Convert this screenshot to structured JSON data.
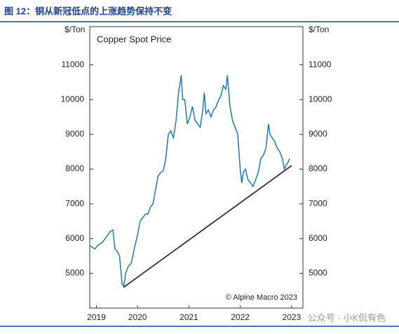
{
  "chart_data": {
    "type": "line",
    "title": "图 12：铜从新冠低点的上涨趋势保持不变",
    "subtitle": "Copper Spot Price",
    "y_label": "$/Ton",
    "y2_label": "$/Ton",
    "source": "© Alpine Macro 2023",
    "watermark": "公众号 · 小K侃有色",
    "xlim": [
      2019.57,
      2023.72
    ],
    "xticks": [
      {
        "value": 2019.7,
        "label": "2019"
      },
      {
        "value": 2020.5,
        "label": "2020"
      },
      {
        "value": 2021.5,
        "label": "2021"
      },
      {
        "value": 2022.5,
        "label": "2022"
      },
      {
        "value": 2023.5,
        "label": "2023"
      }
    ],
    "ylim": [
      4000,
      12100
    ],
    "yticks": [
      5000,
      6000,
      7000,
      8000,
      9000,
      10000,
      11000
    ],
    "series": [
      {
        "name": "Copper Spot Price",
        "color": "#1f77c0",
        "x": [
          2019.57,
          2019.62,
          2019.67,
          2019.72,
          2019.77,
          2019.82,
          2019.87,
          2019.92,
          2019.97,
          2020.02,
          2020.06,
          2020.1,
          2020.15,
          2020.2,
          2020.23,
          2020.27,
          2020.32,
          2020.38,
          2020.45,
          2020.5,
          2020.55,
          2020.6,
          2020.65,
          2020.7,
          2020.75,
          2020.8,
          2020.85,
          2020.9,
          2020.95,
          2021.0,
          2021.05,
          2021.1,
          2021.15,
          2021.2,
          2021.25,
          2021.3,
          2021.35,
          2021.38,
          2021.42,
          2021.47,
          2021.52,
          2021.57,
          2021.62,
          2021.67,
          2021.72,
          2021.77,
          2021.8,
          2021.83,
          2021.88,
          2021.93,
          2021.98,
          2022.03,
          2022.08,
          2022.12,
          2022.17,
          2022.22,
          2022.25,
          2022.3,
          2022.35,
          2022.4,
          2022.45,
          2022.5,
          2022.53,
          2022.56,
          2022.6,
          2022.65,
          2022.7,
          2022.75,
          2022.8,
          2022.85,
          2022.9,
          2022.95,
          2023.0,
          2023.05,
          2023.08,
          2023.12,
          2023.17,
          2023.22,
          2023.27,
          2023.32,
          2023.36,
          2023.39,
          2023.43,
          2023.46
        ],
        "values": [
          5800,
          5750,
          5700,
          5800,
          5850,
          5900,
          6000,
          6100,
          6200,
          6250,
          5700,
          5650,
          5500,
          4700,
          4620,
          5000,
          5200,
          5300,
          5800,
          6100,
          6500,
          6600,
          6700,
          6700,
          6900,
          7000,
          7400,
          7800,
          7900,
          7950,
          8300,
          9000,
          9100,
          8900,
          9400,
          10200,
          10700,
          10000,
          10000,
          9300,
          9500,
          9800,
          9400,
          9300,
          9200,
          9700,
          10200,
          9600,
          9700,
          9500,
          9700,
          9800,
          10000,
          10100,
          10400,
          10300,
          10700,
          9800,
          9400,
          9200,
          9000,
          8000,
          7600,
          7900,
          8000,
          7700,
          7600,
          7500,
          7700,
          7900,
          8300,
          8400,
          8600,
          9300,
          9000,
          8900,
          8800,
          8600,
          8500,
          8300,
          8000,
          8100,
          8200,
          8300
        ]
      }
    ],
    "trendline": {
      "color": "#333333",
      "x": [
        2020.23,
        2023.5
      ],
      "values": [
        4600,
        8100
      ]
    }
  }
}
